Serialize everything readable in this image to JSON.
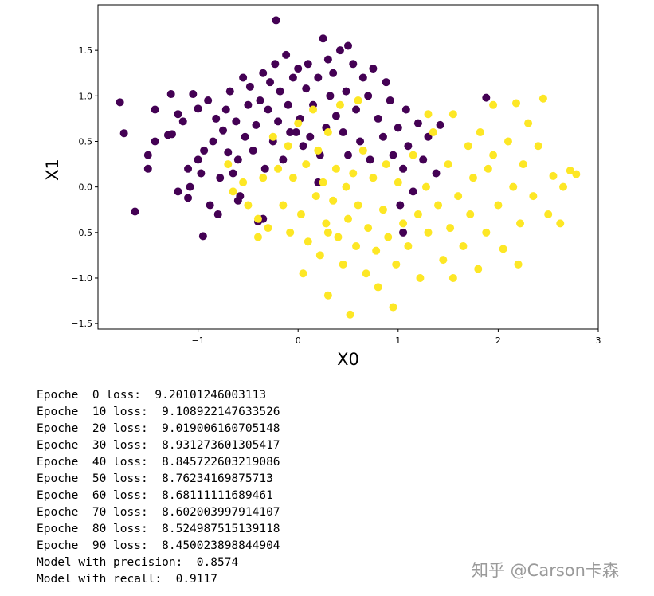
{
  "chart_data": {
    "type": "scatter",
    "x_label": "X0",
    "y_label": "X1",
    "xlim": [
      -2.0,
      3.0
    ],
    "ylim": [
      -1.56,
      2.0
    ],
    "xticks": [
      {
        "value": -1,
        "label": "−1"
      },
      0,
      1,
      2,
      3
    ],
    "yticks": [
      {
        "value": -1.5,
        "label": "−1.5"
      },
      {
        "value": -1.0,
        "label": "−1.0"
      },
      {
        "value": -0.5,
        "label": "−0.5"
      },
      {
        "value": 0.0,
        "label": "0.0"
      },
      0.5,
      {
        "value": 1.0,
        "label": "1.0"
      },
      1.5
    ],
    "grid": false,
    "series": [
      {
        "color": "#440154",
        "x": [
          -1.78,
          -1.74,
          -1.63,
          -1.5,
          -1.5,
          -1.43,
          -1.43,
          -1.3,
          -1.26,
          -1.27,
          -1.2,
          -1.15,
          -1.1,
          -1.1,
          -1.08,
          -1.05,
          -1.0,
          -1.0,
          -0.97,
          -0.95,
          -0.94,
          -0.9,
          -0.88,
          -0.85,
          -0.82,
          -0.8,
          -0.78,
          -0.75,
          -0.72,
          -0.7,
          -0.68,
          -0.65,
          -0.62,
          -0.6,
          -0.58,
          -0.55,
          -0.53,
          -0.5,
          -0.48,
          -0.45,
          -0.42,
          -0.4,
          -0.38,
          -0.35,
          -0.33,
          -0.3,
          -0.28,
          -0.25,
          -0.23,
          -0.22,
          -0.2,
          -0.18,
          -0.15,
          -0.12,
          -0.1,
          -0.08,
          -0.05,
          0.0,
          0.02,
          0.05,
          0.08,
          0.1,
          0.12,
          0.15,
          0.2,
          0.22,
          0.25,
          0.28,
          0.3,
          0.32,
          0.35,
          0.38,
          0.42,
          0.45,
          0.48,
          0.5,
          0.55,
          0.58,
          0.62,
          0.65,
          0.7,
          0.72,
          0.75,
          0.8,
          0.85,
          0.88,
          0.92,
          0.95,
          1.0,
          1.02,
          1.05,
          1.08,
          1.1,
          1.15,
          1.2,
          1.25,
          1.3,
          1.38,
          1.42,
          1.88,
          -0.35,
          -0.6,
          -1.2,
          0.2,
          1.05,
          0.5,
          -0.02
        ],
        "values": [
          0.93,
          0.59,
          -0.27,
          0.35,
          0.2,
          0.85,
          0.5,
          0.57,
          0.58,
          1.02,
          0.8,
          0.72,
          0.2,
          -0.12,
          0.0,
          1.02,
          0.86,
          0.3,
          0.15,
          -0.54,
          0.4,
          0.95,
          -0.2,
          0.5,
          0.75,
          -0.3,
          0.1,
          0.62,
          0.85,
          0.38,
          1.05,
          0.15,
          0.72,
          0.3,
          -0.1,
          1.2,
          0.55,
          0.9,
          1.1,
          0.4,
          0.68,
          -0.38,
          0.95,
          1.25,
          0.2,
          0.85,
          1.15,
          0.5,
          1.35,
          1.83,
          0.72,
          1.05,
          0.3,
          1.45,
          0.9,
          0.6,
          1.2,
          1.3,
          0.75,
          0.45,
          1.08,
          1.35,
          0.55,
          0.9,
          1.2,
          0.35,
          1.63,
          0.65,
          1.4,
          1.0,
          1.25,
          0.78,
          1.5,
          0.6,
          1.05,
          0.35,
          1.35,
          0.85,
          0.5,
          1.2,
          1.0,
          0.3,
          1.3,
          0.75,
          0.55,
          1.15,
          0.95,
          0.35,
          0.65,
          -0.2,
          0.2,
          0.85,
          0.45,
          -0.05,
          0.7,
          0.3,
          0.55,
          0.15,
          0.68,
          0.98,
          -0.35,
          -0.15,
          -0.05,
          0.05,
          -0.5,
          1.55,
          0.6
        ]
      },
      {
        "color": "#fde725",
        "x": [
          -0.7,
          -0.65,
          -0.55,
          -0.5,
          -0.4,
          -0.35,
          -0.3,
          -0.25,
          -0.2,
          -0.15,
          -0.1,
          -0.08,
          -0.05,
          0.0,
          0.03,
          0.05,
          0.08,
          0.1,
          0.15,
          0.18,
          0.2,
          0.22,
          0.25,
          0.28,
          0.3,
          0.3,
          0.35,
          0.38,
          0.4,
          0.42,
          0.45,
          0.48,
          0.5,
          0.52,
          0.55,
          0.58,
          0.6,
          0.65,
          0.68,
          0.7,
          0.75,
          0.78,
          0.8,
          0.85,
          0.88,
          0.9,
          0.95,
          0.98,
          1.0,
          1.05,
          1.1,
          1.15,
          1.2,
          1.22,
          1.28,
          1.3,
          1.35,
          1.4,
          1.45,
          1.5,
          1.52,
          1.55,
          1.6,
          1.65,
          1.7,
          1.72,
          1.75,
          1.8,
          1.82,
          1.88,
          1.9,
          1.95,
          2.0,
          2.05,
          2.1,
          2.15,
          2.18,
          2.2,
          2.22,
          2.25,
          2.3,
          2.35,
          2.4,
          2.45,
          2.5,
          2.55,
          2.62,
          2.65,
          2.72,
          2.78,
          1.95,
          1.3,
          0.6,
          1.55,
          0.3,
          -0.4
        ],
        "values": [
          0.25,
          -0.05,
          0.05,
          -0.2,
          -0.35,
          0.1,
          -0.45,
          0.55,
          0.2,
          -0.2,
          0.45,
          -0.5,
          0.1,
          0.7,
          -0.3,
          -0.95,
          0.25,
          -0.6,
          0.85,
          -0.1,
          0.4,
          -0.75,
          0.05,
          -0.4,
          0.6,
          -1.19,
          -0.15,
          0.2,
          -0.55,
          0.9,
          -0.85,
          0.0,
          -0.35,
          -1.4,
          0.15,
          -0.65,
          -0.2,
          0.4,
          -0.95,
          -0.45,
          0.1,
          -0.7,
          -1.1,
          -0.25,
          0.25,
          -0.55,
          -1.32,
          -0.85,
          0.05,
          -0.4,
          -0.65,
          0.35,
          -0.3,
          -1.0,
          0.0,
          -0.5,
          0.6,
          -0.2,
          -0.8,
          0.25,
          -0.45,
          0.8,
          -0.1,
          -0.65,
          0.45,
          -0.3,
          0.1,
          -0.9,
          0.6,
          -0.5,
          0.2,
          0.35,
          -0.2,
          -0.68,
          0.5,
          0.0,
          0.92,
          -0.85,
          -0.4,
          0.25,
          0.7,
          -0.1,
          0.45,
          0.97,
          -0.3,
          0.12,
          -0.4,
          0.0,
          0.18,
          0.14,
          0.9,
          0.8,
          0.95,
          -1.0,
          -0.5,
          -0.55
        ]
      }
    ]
  },
  "log_lines": [
    "Epoche  0 loss:  9.20101246003113",
    "Epoche  10 loss:  9.108922147633526",
    "Epoche  20 loss:  9.019006160705148",
    "Epoche  30 loss:  8.931273601305417",
    "Epoche  40 loss:  8.845722603219086",
    "Epoche  50 loss:  8.76234169875713",
    "Epoche  60 loss:  8.68111111689461",
    "Epoche  70 loss:  8.602003997914107",
    "Epoche  80 loss:  8.524987515139118",
    "Epoche  90 loss:  8.450023898844904",
    "Model with precision:  0.8574",
    "Model with recall:  0.9117"
  ],
  "watermark": "知乎 @Carson卡森"
}
